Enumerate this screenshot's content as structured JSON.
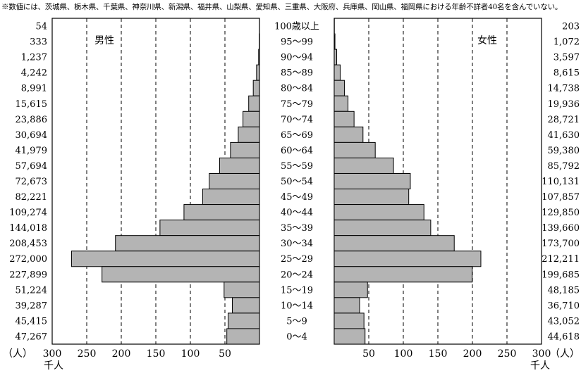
{
  "note": "※数値には、茨城県、栃木県、千葉県、神奈川県、新潟県、福井県、山梨県、愛知県、三重県、大阪府、兵庫県、岡山県、福岡県における年齢不詳者40名を含んでいない。",
  "colors": {
    "bar": "#b4b4b4",
    "stroke": "#000000"
  },
  "chart_data": {
    "type": "bar",
    "orientation": "horizontal-pyramid",
    "categories": [
      "100歳以上",
      "95～99",
      "90～94",
      "85～89",
      "80～84",
      "75～79",
      "70～74",
      "65～69",
      "60～64",
      "55～59",
      "50～54",
      "45～49",
      "40～44",
      "35～39",
      "30～34",
      "25～29",
      "20～24",
      "15～19",
      "10～14",
      "5～9",
      "0～4"
    ],
    "series": [
      {
        "name": "男性",
        "values": [
          54,
          333,
          1237,
          4242,
          8991,
          15615,
          23886,
          30694,
          41979,
          57694,
          72673,
          82221,
          109274,
          144018,
          208453,
          272000,
          227899,
          51224,
          39287,
          45415,
          47267
        ],
        "labels": [
          "54",
          "333",
          "1,237",
          "4,242",
          "8,991",
          "15,615",
          "23,886",
          "30,694",
          "41,979",
          "57,694",
          "72,673",
          "82,221",
          "109,274",
          "144,018",
          "208,453",
          "272,000",
          "227,899",
          "51,224",
          "39,287",
          "45,415",
          "47,267"
        ]
      },
      {
        "name": "女性",
        "values": [
          203,
          1072,
          3597,
          8615,
          14738,
          19936,
          28721,
          41630,
          59380,
          85792,
          110131,
          107857,
          129850,
          139660,
          173700,
          212211,
          199685,
          48185,
          36710,
          43052,
          44618
        ],
        "labels": [
          "203",
          "1,072",
          "3,597",
          "8,615",
          "14,738",
          "19,936",
          "28,721",
          "41,630",
          "59,380",
          "85,792",
          "110,131",
          "107,857",
          "129,850",
          "139,660",
          "173,700",
          "212,211",
          "199,685",
          "48,185",
          "36,710",
          "43,052",
          "44,618"
        ]
      }
    ],
    "value_unit": "（人）",
    "axis": {
      "unit": "千人",
      "xlim": [
        0,
        300
      ],
      "male_ticks": [
        "300",
        "250",
        "200",
        "150",
        "100",
        "50"
      ],
      "female_ticks": [
        "50",
        "100",
        "150",
        "200",
        "250",
        "300"
      ],
      "tick_values": [
        300,
        250,
        200,
        150,
        100,
        50
      ],
      "gridlines": "dashed"
    }
  }
}
